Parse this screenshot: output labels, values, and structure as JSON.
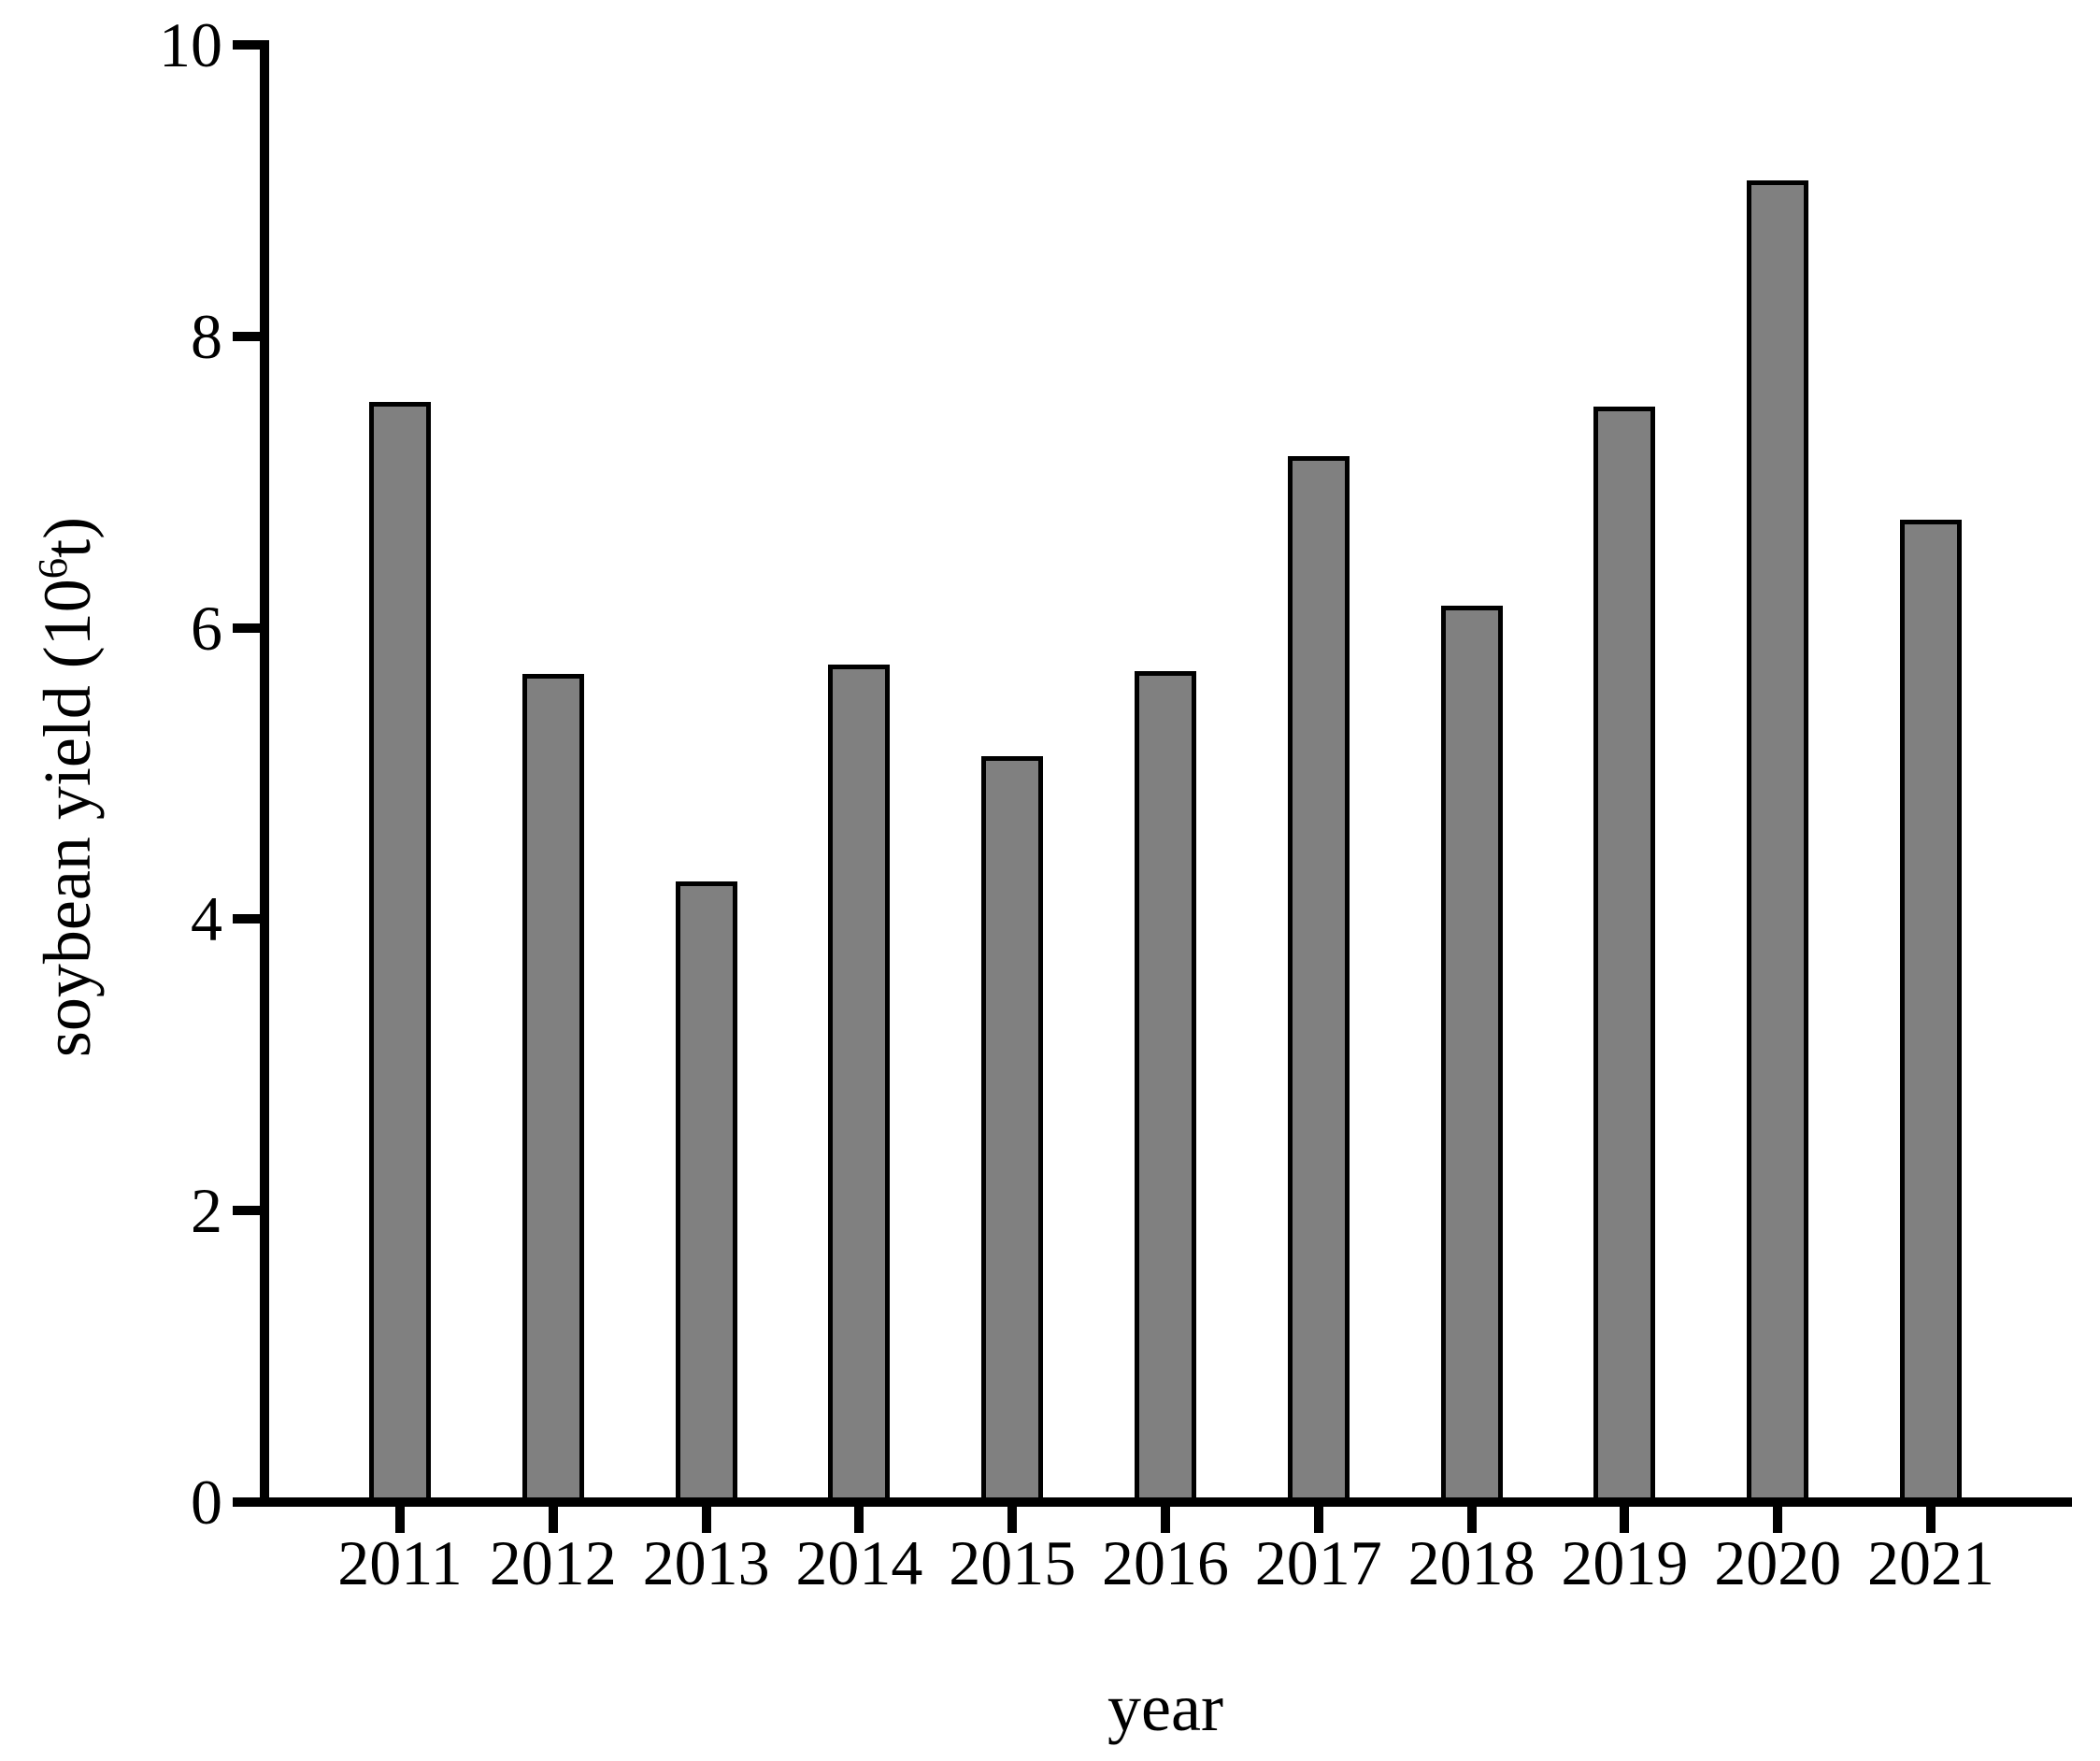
{
  "chart_data": {
    "type": "bar",
    "title": "",
    "categories": [
      "2011",
      "2012",
      "2013",
      "2014",
      "2015",
      "2016",
      "2017",
      "2018",
      "2019",
      "2020",
      "2021"
    ],
    "values": [
      7.55,
      5.68,
      4.26,
      5.75,
      5.12,
      5.7,
      7.18,
      6.15,
      7.52,
      9.07,
      6.74
    ],
    "xlabel": "year",
    "ylabel": "soybean yield (10⁶t)",
    "ylabel_prefix": "soybean yield (10",
    "ylabel_superscript": "6",
    "ylabel_suffix": "t)",
    "ylim": [
      0,
      10
    ],
    "yticks": [
      0,
      2,
      4,
      6,
      8,
      10
    ],
    "ytick_labels": [
      "0",
      "2",
      "4",
      "6",
      "8",
      "10"
    ],
    "grid": false,
    "legend": "none",
    "bar_fill_color": "#808080",
    "bar_edge_color": "#000000",
    "axis_color": "#000000",
    "text_color": "#000000",
    "background_color": "#ffffff"
  }
}
